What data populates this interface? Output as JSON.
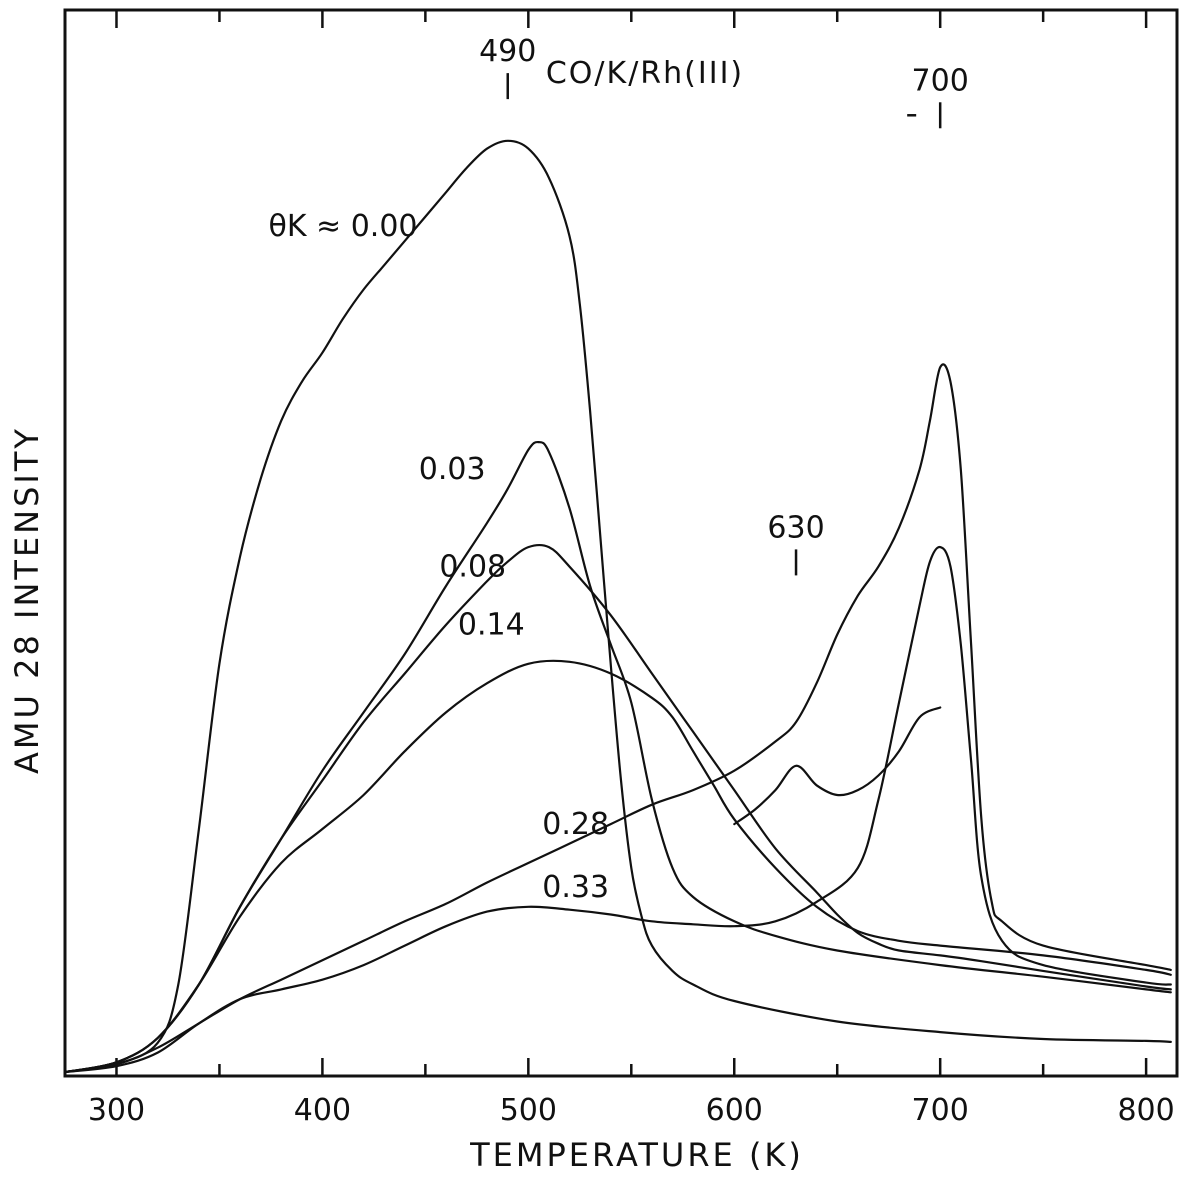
{
  "chart_data": {
    "type": "line",
    "title": "CO/K/Rh(III)",
    "xlabel": "TEMPERATURE (K)",
    "ylabel": "AMU 28 INTENSITY",
    "xlim": [
      275,
      815
    ],
    "ylim": [
      0,
      100
    ],
    "x_ticks": [
      300,
      400,
      500,
      600,
      700,
      800
    ],
    "x_minor_ticks": [
      350,
      450,
      550,
      650,
      750
    ],
    "grid": false,
    "legend": "none",
    "series": [
      {
        "name": "θK ≈ 0.00",
        "points": [
          [
            275,
            0
          ],
          [
            300,
            0.8
          ],
          [
            320,
            3
          ],
          [
            330,
            9
          ],
          [
            340,
            25
          ],
          [
            350,
            42
          ],
          [
            360,
            53
          ],
          [
            370,
            61
          ],
          [
            380,
            67
          ],
          [
            390,
            71
          ],
          [
            400,
            74
          ],
          [
            410,
            77.5
          ],
          [
            420,
            80.5
          ],
          [
            430,
            83
          ],
          [
            440,
            85.5
          ],
          [
            450,
            88
          ],
          [
            460,
            90.5
          ],
          [
            470,
            93
          ],
          [
            480,
            95
          ],
          [
            490,
            95.8
          ],
          [
            500,
            95
          ],
          [
            510,
            92
          ],
          [
            520,
            86
          ],
          [
            525,
            79
          ],
          [
            530,
            68
          ],
          [
            535,
            55
          ],
          [
            540,
            42
          ],
          [
            545,
            30
          ],
          [
            550,
            21
          ],
          [
            555,
            16
          ],
          [
            560,
            13
          ],
          [
            570,
            10.4
          ],
          [
            580,
            9
          ],
          [
            600,
            7.3
          ],
          [
            650,
            5.2
          ],
          [
            700,
            4.1
          ],
          [
            750,
            3.4
          ],
          [
            800,
            3.2
          ],
          [
            812,
            3.1
          ]
        ]
      },
      {
        "name": "0.03",
        "points": [
          [
            275,
            0
          ],
          [
            300,
            1
          ],
          [
            320,
            3.5
          ],
          [
            340,
            9
          ],
          [
            360,
            17
          ],
          [
            380,
            24
          ],
          [
            400,
            31
          ],
          [
            420,
            37
          ],
          [
            440,
            43
          ],
          [
            460,
            50
          ],
          [
            480,
            56.5
          ],
          [
            490,
            60
          ],
          [
            500,
            64
          ],
          [
            505,
            64.8
          ],
          [
            510,
            63.8
          ],
          [
            520,
            58
          ],
          [
            530,
            50
          ],
          [
            540,
            44
          ],
          [
            550,
            38
          ],
          [
            560,
            28
          ],
          [
            570,
            21
          ],
          [
            580,
            18
          ],
          [
            600,
            15.5
          ],
          [
            620,
            14
          ],
          [
            650,
            12.5
          ],
          [
            700,
            11
          ],
          [
            750,
            9.8
          ],
          [
            800,
            8.5
          ],
          [
            812,
            8.2
          ]
        ]
      },
      {
        "name": "0.08",
        "points": [
          [
            275,
            0
          ],
          [
            300,
            1
          ],
          [
            320,
            3.5
          ],
          [
            340,
            9
          ],
          [
            360,
            17
          ],
          [
            380,
            24
          ],
          [
            400,
            30
          ],
          [
            420,
            36
          ],
          [
            440,
            41
          ],
          [
            460,
            46
          ],
          [
            480,
            50.5
          ],
          [
            490,
            52.5
          ],
          [
            500,
            54
          ],
          [
            510,
            54
          ],
          [
            520,
            52
          ],
          [
            540,
            47
          ],
          [
            560,
            41
          ],
          [
            580,
            35
          ],
          [
            600,
            29
          ],
          [
            620,
            23
          ],
          [
            640,
            18.5
          ],
          [
            650,
            16.2
          ],
          [
            660,
            14.3
          ],
          [
            670,
            13.2
          ],
          [
            680,
            12.5
          ],
          [
            700,
            12
          ],
          [
            720,
            11.4
          ],
          [
            750,
            10.4
          ],
          [
            800,
            8.8
          ],
          [
            812,
            8.5
          ]
        ]
      },
      {
        "name": "0.14",
        "points": [
          [
            275,
            0
          ],
          [
            300,
            1
          ],
          [
            320,
            3.5
          ],
          [
            340,
            9
          ],
          [
            360,
            16
          ],
          [
            380,
            21.5
          ],
          [
            400,
            25
          ],
          [
            420,
            28.5
          ],
          [
            440,
            33
          ],
          [
            460,
            37
          ],
          [
            480,
            40
          ],
          [
            500,
            42
          ],
          [
            520,
            42.2
          ],
          [
            540,
            41
          ],
          [
            560,
            38.5
          ],
          [
            570,
            36.5
          ],
          [
            580,
            33
          ],
          [
            590,
            29.5
          ],
          [
            600,
            26
          ],
          [
            620,
            21
          ],
          [
            640,
            17
          ],
          [
            660,
            14.5
          ],
          [
            680,
            13.5
          ],
          [
            700,
            13
          ],
          [
            750,
            12
          ],
          [
            800,
            10.5
          ],
          [
            812,
            10
          ]
        ]
      },
      {
        "name": "0.28",
        "points": [
          [
            275,
            0
          ],
          [
            300,
            0.8
          ],
          [
            320,
            2.5
          ],
          [
            340,
            5
          ],
          [
            360,
            7.5
          ],
          [
            380,
            9.5
          ],
          [
            400,
            11.5
          ],
          [
            420,
            13.5
          ],
          [
            440,
            15.5
          ],
          [
            460,
            17.3
          ],
          [
            480,
            19.5
          ],
          [
            500,
            21.5
          ],
          [
            520,
            23.5
          ],
          [
            540,
            25.5
          ],
          [
            560,
            27.5
          ],
          [
            580,
            29
          ],
          [
            600,
            31
          ],
          [
            620,
            34
          ],
          [
            630,
            36
          ],
          [
            640,
            40
          ],
          [
            650,
            45
          ],
          [
            660,
            49
          ],
          [
            670,
            52
          ],
          [
            680,
            56
          ],
          [
            690,
            62
          ],
          [
            695,
            67
          ],
          [
            700,
            72.5
          ],
          [
            705,
            71
          ],
          [
            710,
            62
          ],
          [
            715,
            44
          ],
          [
            720,
            26
          ],
          [
            725,
            17.5
          ],
          [
            730,
            15.5
          ],
          [
            750,
            13
          ],
          [
            800,
            11
          ],
          [
            812,
            10.5
          ]
        ]
      },
      {
        "name": "0.33",
        "points": [
          [
            275,
            0
          ],
          [
            300,
            0.6
          ],
          [
            320,
            2
          ],
          [
            340,
            5
          ],
          [
            360,
            7.5
          ],
          [
            380,
            8.5
          ],
          [
            400,
            9.5
          ],
          [
            420,
            11
          ],
          [
            440,
            13
          ],
          [
            460,
            15
          ],
          [
            480,
            16.5
          ],
          [
            500,
            17
          ],
          [
            520,
            16.7
          ],
          [
            540,
            16.2
          ],
          [
            560,
            15.5
          ],
          [
            580,
            15.2
          ],
          [
            600,
            15
          ],
          [
            620,
            15.5
          ],
          [
            640,
            17.5
          ],
          [
            660,
            21
          ],
          [
            670,
            28
          ],
          [
            680,
            38
          ],
          [
            690,
            48
          ],
          [
            695,
            52.5
          ],
          [
            700,
            54
          ],
          [
            705,
            52
          ],
          [
            710,
            44
          ],
          [
            715,
            32
          ],
          [
            720,
            20
          ],
          [
            730,
            13.5
          ],
          [
            750,
            11
          ],
          [
            800,
            9.2
          ],
          [
            812,
            9
          ]
        ]
      },
      {
        "name": "",
        "points": [
          [
            600,
            25.5
          ],
          [
            610,
            27
          ],
          [
            620,
            29
          ],
          [
            630,
            31.5
          ],
          [
            640,
            29.5
          ],
          [
            650,
            28.5
          ],
          [
            660,
            29
          ],
          [
            670,
            30.5
          ],
          [
            680,
            33
          ],
          [
            690,
            36.5
          ],
          [
            700,
            37.5
          ]
        ]
      }
    ],
    "annotations": [
      {
        "text": "490",
        "x": 490,
        "y": 104,
        "marker": true
      },
      {
        "text": "700",
        "x": 700,
        "y": 101,
        "marker": true,
        "dash": true
      },
      {
        "text": "630",
        "x": 630,
        "y": 55,
        "marker": true
      },
      {
        "text": "θK ≈ 0.00",
        "x": 410,
        "y": 86
      },
      {
        "text": "0.03",
        "x": 463,
        "y": 61
      },
      {
        "text": "0.08",
        "x": 473,
        "y": 51
      },
      {
        "text": "0.14",
        "x": 482,
        "y": 45
      },
      {
        "text": "0.28",
        "x": 523,
        "y": 24.5
      },
      {
        "text": "0.33",
        "x": 523,
        "y": 18
      }
    ]
  }
}
